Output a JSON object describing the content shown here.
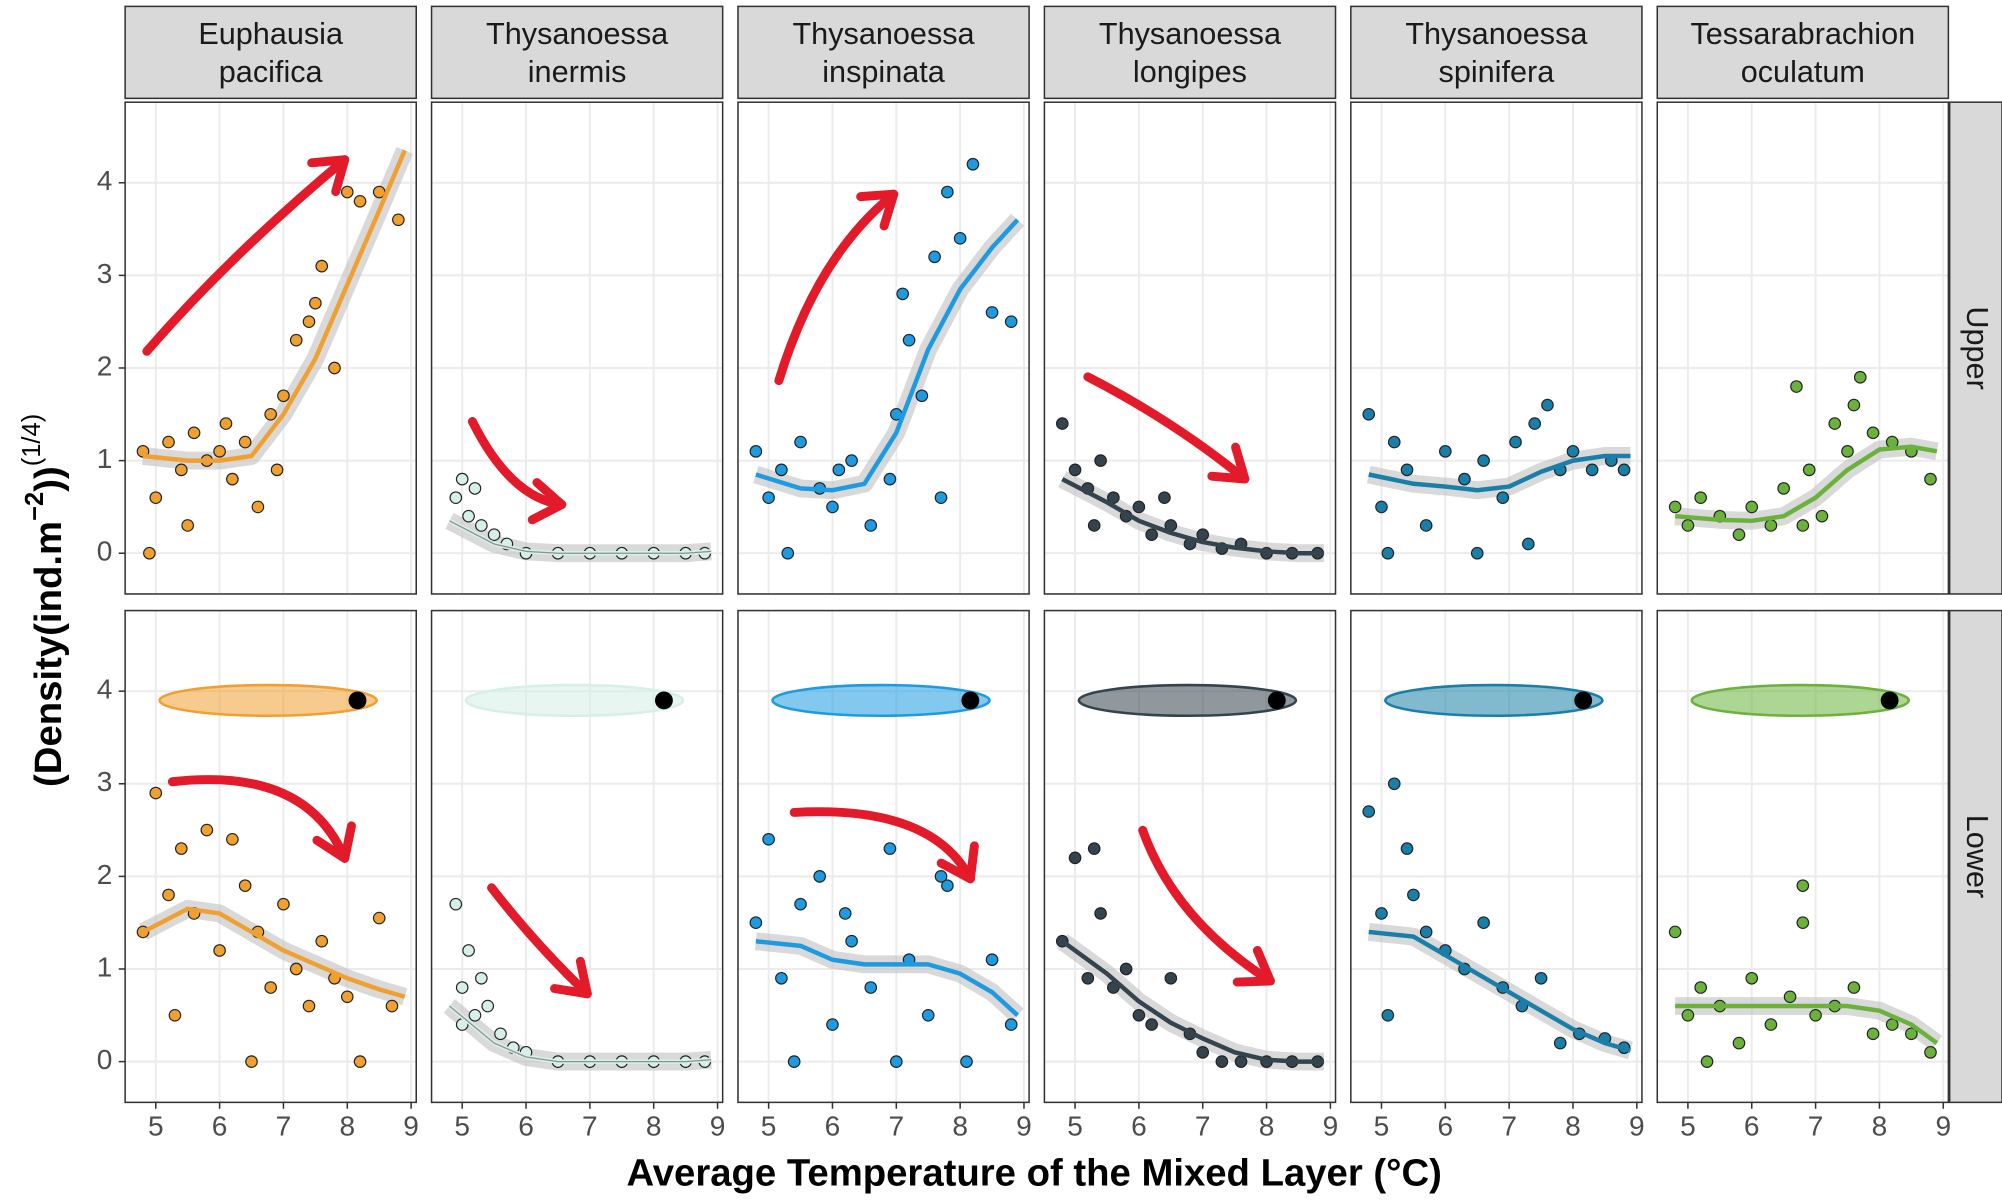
{
  "chart_data": {
    "type": "scatter",
    "columns": [
      [
        "Euphausia",
        "pacifica"
      ],
      [
        "Thysanoessa",
        "inermis"
      ],
      [
        "Thysanoessa",
        "inspinata"
      ],
      [
        "Thysanoessa",
        "longipes"
      ],
      [
        "Thysanoessa",
        "spinifera"
      ],
      [
        "Tessarabrachion",
        "oculatum"
      ]
    ],
    "rows": [
      "Upper",
      "Lower"
    ],
    "colors": [
      "#f0a030",
      "#d6efe8",
      "#1e9ae0",
      "#34444f",
      "#1a7fa8",
      "#6ab23c"
    ],
    "x_label": "Average Temperature of the Mixed Layer (°C)",
    "y_label": [
      "(Density(ind.m",
      "−2",
      "))",
      "(1/4)"
    ],
    "xlim": [
      4.52,
      9.08
    ],
    "xticks": [
      5,
      6,
      7,
      8,
      9
    ],
    "ylim": [
      -0.44,
      4.87
    ],
    "yticks": [
      0,
      1,
      2,
      3,
      4
    ],
    "grid": true,
    "smooth_x": [
      4.8,
      5.5,
      6,
      6.5,
      7,
      7.5,
      8,
      8.5,
      8.9
    ],
    "panels": [
      [
        {
          "x": [
            4.8,
            5,
            5.2,
            5.4,
            5.6,
            5.8,
            6,
            6.2,
            6.4,
            6.6,
            6.8,
            7,
            7.2,
            7.4,
            7.6,
            7.8,
            8,
            8.2,
            8.5,
            8.8,
            5.5,
            6.1,
            6.9,
            7.5,
            4.9
          ],
          "y": [
            1.1,
            0.6,
            1.2,
            0.9,
            1.3,
            1.0,
            1.1,
            0.8,
            1.2,
            0.5,
            1.5,
            1.7,
            2.3,
            2.5,
            3.1,
            2.0,
            3.9,
            3.8,
            3.9,
            3.6,
            0.3,
            1.4,
            0.9,
            2.7,
            0
          ],
          "smooth_y": [
            1.05,
            1.0,
            1.0,
            1.05,
            1.5,
            2.1,
            2.9,
            3.7,
            4.35
          ]
        },
        {
          "x": [
            4.9,
            5,
            5.1,
            5.2,
            5.3,
            5.5,
            5.7,
            6,
            6.5,
            7,
            7.5,
            8,
            8.5,
            8.8
          ],
          "y": [
            0.6,
            0.8,
            0.4,
            0.7,
            0.3,
            0.2,
            0.1,
            0,
            0,
            0,
            0,
            0,
            0,
            0
          ],
          "smooth_y": [
            0.35,
            0.1,
            0.02,
            0,
            0,
            0,
            0,
            0,
            0.02
          ]
        },
        {
          "x": [
            4.8,
            5,
            5.2,
            5.5,
            5.8,
            6,
            6.3,
            6.6,
            6.9,
            7,
            7.2,
            7.4,
            7.6,
            7.8,
            8,
            8.2,
            8.5,
            8.8,
            5.3,
            6.1,
            7.1,
            7.7
          ],
          "y": [
            1.1,
            0.6,
            0.9,
            1.2,
            0.7,
            0.5,
            1.0,
            0.3,
            0.8,
            1.5,
            2.3,
            1.7,
            3.2,
            3.9,
            3.4,
            4.2,
            2.6,
            2.5,
            0,
            0.9,
            2.8,
            0.6
          ],
          "smooth_y": [
            0.85,
            0.7,
            0.68,
            0.75,
            1.3,
            2.2,
            2.85,
            3.3,
            3.6
          ]
        },
        {
          "x": [
            4.8,
            5,
            5.2,
            5.4,
            5.6,
            5.8,
            6,
            6.2,
            6.5,
            6.8,
            7,
            7.3,
            7.6,
            8,
            8.4,
            8.8,
            5.3,
            6.4
          ],
          "y": [
            1.4,
            0.9,
            0.7,
            1.0,
            0.6,
            0.4,
            0.5,
            0.2,
            0.3,
            0.1,
            0.2,
            0.05,
            0.1,
            0,
            0,
            0,
            0.3,
            0.6
          ],
          "smooth_y": [
            0.8,
            0.55,
            0.35,
            0.22,
            0.12,
            0.06,
            0.02,
            0,
            0
          ]
        },
        {
          "x": [
            4.8,
            5,
            5.2,
            5.4,
            5.7,
            6,
            6.3,
            6.6,
            6.9,
            7.1,
            7.4,
            7.6,
            7.8,
            8,
            8.3,
            8.6,
            8.8,
            5.1,
            6.5,
            7.3
          ],
          "y": [
            1.5,
            0.5,
            1.2,
            0.9,
            0.3,
            1.1,
            0.8,
            1.0,
            0.6,
            1.2,
            1.4,
            1.6,
            0.9,
            1.1,
            0.9,
            1.0,
            0.9,
            0,
            0,
            0.1
          ],
          "smooth_y": [
            0.85,
            0.75,
            0.72,
            0.68,
            0.72,
            0.88,
            1.0,
            1.05,
            1.05
          ]
        },
        {
          "x": [
            4.8,
            5,
            5.2,
            5.5,
            5.8,
            6,
            6.3,
            6.5,
            6.7,
            6.9,
            7.1,
            7.3,
            7.5,
            7.7,
            7.9,
            8.2,
            8.5,
            8.8,
            6.8,
            7.6
          ],
          "y": [
            0.5,
            0.3,
            0.6,
            0.4,
            0.2,
            0.5,
            0.3,
            0.7,
            1.8,
            0.9,
            0.4,
            1.4,
            1.1,
            1.9,
            1.3,
            1.2,
            1.1,
            0.8,
            0.3,
            1.6
          ],
          "smooth_y": [
            0.4,
            0.36,
            0.35,
            0.4,
            0.6,
            0.9,
            1.12,
            1.15,
            1.1
          ]
        }
      ],
      [
        {
          "x": [
            4.8,
            5,
            5.2,
            5.4,
            5.6,
            5.8,
            6,
            6.2,
            6.4,
            6.6,
            6.8,
            7,
            7.2,
            7.4,
            7.6,
            8,
            8.2,
            8.7,
            5.3,
            6.5,
            7.8,
            8.5
          ],
          "y": [
            1.4,
            2.9,
            1.8,
            2.3,
            1.6,
            2.5,
            1.2,
            2.4,
            1.9,
            1.4,
            0.8,
            1.7,
            1.0,
            0.6,
            1.3,
            0.7,
            0,
            0.6,
            0.5,
            0,
            0.9,
            1.55
          ],
          "smooth_y": [
            1.4,
            1.65,
            1.6,
            1.4,
            1.2,
            1.05,
            0.9,
            0.78,
            0.7
          ]
        },
        {
          "x": [
            4.9,
            5,
            5.1,
            5.2,
            5.4,
            5.6,
            5.8,
            6,
            6.5,
            7,
            7.5,
            8,
            8.5,
            8.8,
            5,
            5.3
          ],
          "y": [
            1.7,
            0.8,
            1.2,
            0.5,
            0.6,
            0.3,
            0.15,
            0.1,
            0,
            0,
            0,
            0,
            0,
            0,
            0.4,
            0.9
          ],
          "smooth_y": [
            0.6,
            0.2,
            0.05,
            0,
            0,
            0,
            0,
            0,
            0.02
          ]
        },
        {
          "x": [
            4.8,
            5,
            5.2,
            5.5,
            5.8,
            6,
            6.3,
            6.6,
            6.9,
            7.2,
            7.5,
            7.8,
            8.1,
            8.5,
            8.8,
            5.4,
            6.2,
            7.0,
            7.7
          ],
          "y": [
            1.5,
            2.4,
            0.9,
            1.7,
            2.0,
            0.4,
            1.3,
            0.8,
            2.3,
            1.1,
            0.5,
            1.9,
            0,
            1.1,
            0.4,
            0,
            1.6,
            0,
            2.0
          ],
          "smooth_y": [
            1.3,
            1.25,
            1.1,
            1.05,
            1.05,
            1.05,
            0.95,
            0.75,
            0.5
          ]
        },
        {
          "x": [
            4.8,
            5,
            5.2,
            5.4,
            5.6,
            5.8,
            6,
            6.2,
            6.5,
            6.8,
            7,
            7.3,
            7.6,
            8,
            8.4,
            8.8,
            5.3
          ],
          "y": [
            1.3,
            2.2,
            0.9,
            1.6,
            0.8,
            1.0,
            0.5,
            0.4,
            0.9,
            0.3,
            0.1,
            0,
            0,
            0,
            0,
            0,
            2.3
          ],
          "smooth_y": [
            1.3,
            0.95,
            0.65,
            0.42,
            0.25,
            0.1,
            0.02,
            0,
            0
          ]
        },
        {
          "x": [
            4.8,
            5,
            5.2,
            5.4,
            5.7,
            6,
            6.3,
            6.6,
            6.9,
            7.2,
            7.5,
            7.8,
            8.1,
            8.5,
            8.8,
            5.1,
            5.5
          ],
          "y": [
            2.7,
            1.6,
            3.0,
            2.3,
            1.4,
            1.2,
            1.0,
            1.5,
            0.8,
            0.6,
            0.9,
            0.2,
            0.3,
            0.25,
            0.15,
            0.5,
            1.8
          ],
          "smooth_y": [
            1.4,
            1.35,
            1.15,
            0.95,
            0.75,
            0.55,
            0.35,
            0.2,
            0.12
          ]
        },
        {
          "x": [
            4.8,
            5,
            5.2,
            5.5,
            5.8,
            6,
            6.3,
            6.6,
            6.8,
            7,
            7.3,
            7.6,
            7.9,
            8.2,
            8.5,
            8.8,
            6.8,
            5.3
          ],
          "y": [
            1.4,
            0.5,
            0.8,
            0.6,
            0.2,
            0.9,
            0.4,
            0.7,
            1.9,
            0.5,
            0.6,
            0.8,
            0.3,
            0.4,
            0.3,
            0.1,
            1.5,
            0
          ],
          "smooth_y": [
            0.6,
            0.6,
            0.6,
            0.6,
            0.6,
            0.6,
            0.55,
            0.4,
            0.2
          ]
        }
      ]
    ]
  }
}
